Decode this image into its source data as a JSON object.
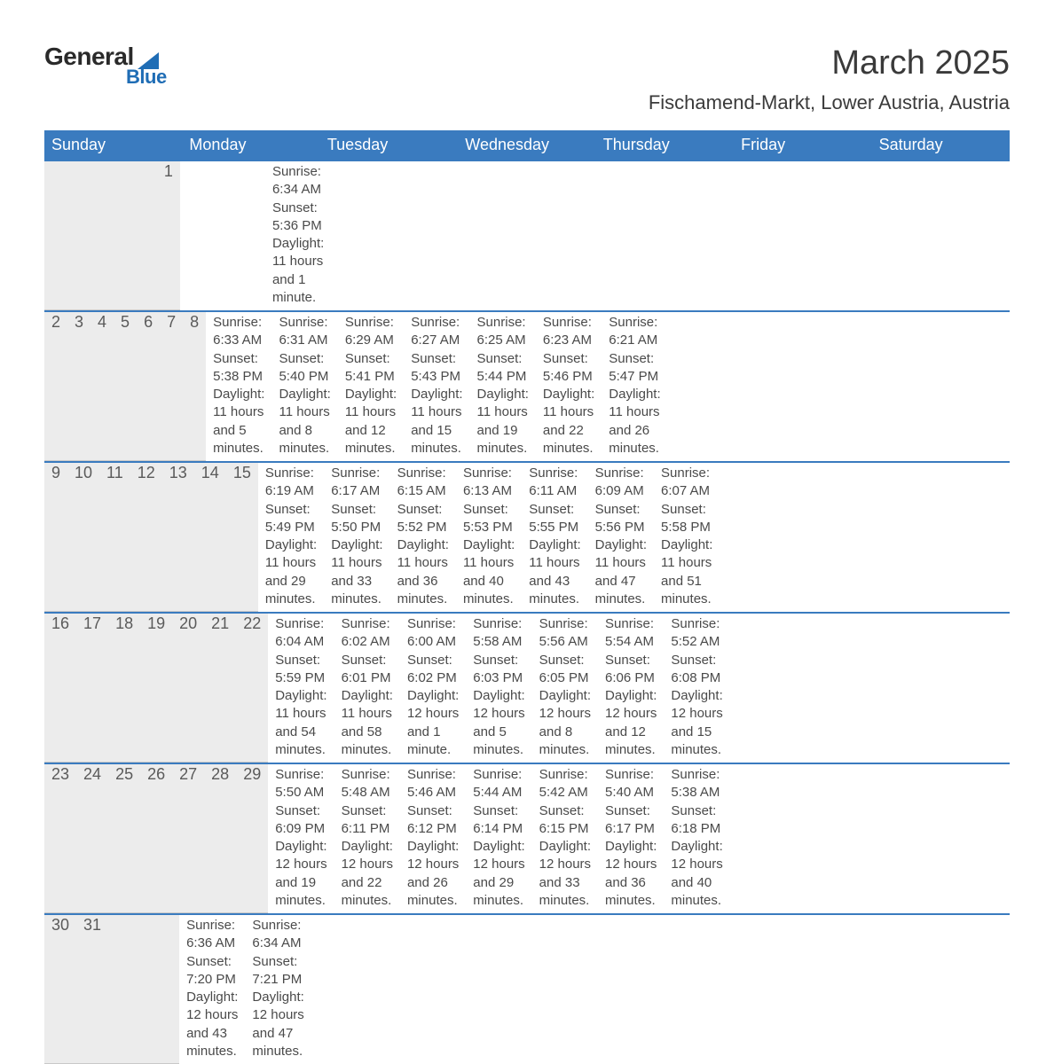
{
  "logo": {
    "text1": "General",
    "text2": "Blue"
  },
  "title": {
    "month": "March 2025",
    "location": "Fischamend-Markt, Lower Austria, Austria"
  },
  "colors": {
    "header_bg": "#3a7bbf",
    "header_text": "#ffffff",
    "daynum_bg": "#ececec",
    "row_divider": "#3a7bbf",
    "body_text": "#4a4a4a",
    "logo_accent": "#1f6db5",
    "page_bg": "#ffffff"
  },
  "fonts": {
    "family": "Arial",
    "title_size_pt": 29,
    "location_size_pt": 17,
    "header_size_pt": 14,
    "body_size_pt": 11
  },
  "weekdays": [
    "Sunday",
    "Monday",
    "Tuesday",
    "Wednesday",
    "Thursday",
    "Friday",
    "Saturday"
  ],
  "weeks": [
    {
      "days": [
        null,
        null,
        null,
        null,
        null,
        null,
        {
          "n": "1",
          "sunrise": "Sunrise: 6:34 AM",
          "sunset": "Sunset: 5:36 PM",
          "daylight1": "Daylight: 11 hours",
          "daylight2": "and 1 minute."
        }
      ]
    },
    {
      "days": [
        {
          "n": "2",
          "sunrise": "Sunrise: 6:33 AM",
          "sunset": "Sunset: 5:38 PM",
          "daylight1": "Daylight: 11 hours",
          "daylight2": "and 5 minutes."
        },
        {
          "n": "3",
          "sunrise": "Sunrise: 6:31 AM",
          "sunset": "Sunset: 5:40 PM",
          "daylight1": "Daylight: 11 hours",
          "daylight2": "and 8 minutes."
        },
        {
          "n": "4",
          "sunrise": "Sunrise: 6:29 AM",
          "sunset": "Sunset: 5:41 PM",
          "daylight1": "Daylight: 11 hours",
          "daylight2": "and 12 minutes."
        },
        {
          "n": "5",
          "sunrise": "Sunrise: 6:27 AM",
          "sunset": "Sunset: 5:43 PM",
          "daylight1": "Daylight: 11 hours",
          "daylight2": "and 15 minutes."
        },
        {
          "n": "6",
          "sunrise": "Sunrise: 6:25 AM",
          "sunset": "Sunset: 5:44 PM",
          "daylight1": "Daylight: 11 hours",
          "daylight2": "and 19 minutes."
        },
        {
          "n": "7",
          "sunrise": "Sunrise: 6:23 AM",
          "sunset": "Sunset: 5:46 PM",
          "daylight1": "Daylight: 11 hours",
          "daylight2": "and 22 minutes."
        },
        {
          "n": "8",
          "sunrise": "Sunrise: 6:21 AM",
          "sunset": "Sunset: 5:47 PM",
          "daylight1": "Daylight: 11 hours",
          "daylight2": "and 26 minutes."
        }
      ]
    },
    {
      "days": [
        {
          "n": "9",
          "sunrise": "Sunrise: 6:19 AM",
          "sunset": "Sunset: 5:49 PM",
          "daylight1": "Daylight: 11 hours",
          "daylight2": "and 29 minutes."
        },
        {
          "n": "10",
          "sunrise": "Sunrise: 6:17 AM",
          "sunset": "Sunset: 5:50 PM",
          "daylight1": "Daylight: 11 hours",
          "daylight2": "and 33 minutes."
        },
        {
          "n": "11",
          "sunrise": "Sunrise: 6:15 AM",
          "sunset": "Sunset: 5:52 PM",
          "daylight1": "Daylight: 11 hours",
          "daylight2": "and 36 minutes."
        },
        {
          "n": "12",
          "sunrise": "Sunrise: 6:13 AM",
          "sunset": "Sunset: 5:53 PM",
          "daylight1": "Daylight: 11 hours",
          "daylight2": "and 40 minutes."
        },
        {
          "n": "13",
          "sunrise": "Sunrise: 6:11 AM",
          "sunset": "Sunset: 5:55 PM",
          "daylight1": "Daylight: 11 hours",
          "daylight2": "and 43 minutes."
        },
        {
          "n": "14",
          "sunrise": "Sunrise: 6:09 AM",
          "sunset": "Sunset: 5:56 PM",
          "daylight1": "Daylight: 11 hours",
          "daylight2": "and 47 minutes."
        },
        {
          "n": "15",
          "sunrise": "Sunrise: 6:07 AM",
          "sunset": "Sunset: 5:58 PM",
          "daylight1": "Daylight: 11 hours",
          "daylight2": "and 51 minutes."
        }
      ]
    },
    {
      "days": [
        {
          "n": "16",
          "sunrise": "Sunrise: 6:04 AM",
          "sunset": "Sunset: 5:59 PM",
          "daylight1": "Daylight: 11 hours",
          "daylight2": "and 54 minutes."
        },
        {
          "n": "17",
          "sunrise": "Sunrise: 6:02 AM",
          "sunset": "Sunset: 6:01 PM",
          "daylight1": "Daylight: 11 hours",
          "daylight2": "and 58 minutes."
        },
        {
          "n": "18",
          "sunrise": "Sunrise: 6:00 AM",
          "sunset": "Sunset: 6:02 PM",
          "daylight1": "Daylight: 12 hours",
          "daylight2": "and 1 minute."
        },
        {
          "n": "19",
          "sunrise": "Sunrise: 5:58 AM",
          "sunset": "Sunset: 6:03 PM",
          "daylight1": "Daylight: 12 hours",
          "daylight2": "and 5 minutes."
        },
        {
          "n": "20",
          "sunrise": "Sunrise: 5:56 AM",
          "sunset": "Sunset: 6:05 PM",
          "daylight1": "Daylight: 12 hours",
          "daylight2": "and 8 minutes."
        },
        {
          "n": "21",
          "sunrise": "Sunrise: 5:54 AM",
          "sunset": "Sunset: 6:06 PM",
          "daylight1": "Daylight: 12 hours",
          "daylight2": "and 12 minutes."
        },
        {
          "n": "22",
          "sunrise": "Sunrise: 5:52 AM",
          "sunset": "Sunset: 6:08 PM",
          "daylight1": "Daylight: 12 hours",
          "daylight2": "and 15 minutes."
        }
      ]
    },
    {
      "days": [
        {
          "n": "23",
          "sunrise": "Sunrise: 5:50 AM",
          "sunset": "Sunset: 6:09 PM",
          "daylight1": "Daylight: 12 hours",
          "daylight2": "and 19 minutes."
        },
        {
          "n": "24",
          "sunrise": "Sunrise: 5:48 AM",
          "sunset": "Sunset: 6:11 PM",
          "daylight1": "Daylight: 12 hours",
          "daylight2": "and 22 minutes."
        },
        {
          "n": "25",
          "sunrise": "Sunrise: 5:46 AM",
          "sunset": "Sunset: 6:12 PM",
          "daylight1": "Daylight: 12 hours",
          "daylight2": "and 26 minutes."
        },
        {
          "n": "26",
          "sunrise": "Sunrise: 5:44 AM",
          "sunset": "Sunset: 6:14 PM",
          "daylight1": "Daylight: 12 hours",
          "daylight2": "and 29 minutes."
        },
        {
          "n": "27",
          "sunrise": "Sunrise: 5:42 AM",
          "sunset": "Sunset: 6:15 PM",
          "daylight1": "Daylight: 12 hours",
          "daylight2": "and 33 minutes."
        },
        {
          "n": "28",
          "sunrise": "Sunrise: 5:40 AM",
          "sunset": "Sunset: 6:17 PM",
          "daylight1": "Daylight: 12 hours",
          "daylight2": "and 36 minutes."
        },
        {
          "n": "29",
          "sunrise": "Sunrise: 5:38 AM",
          "sunset": "Sunset: 6:18 PM",
          "daylight1": "Daylight: 12 hours",
          "daylight2": "and 40 minutes."
        }
      ]
    },
    {
      "days": [
        {
          "n": "30",
          "sunrise": "Sunrise: 6:36 AM",
          "sunset": "Sunset: 7:20 PM",
          "daylight1": "Daylight: 12 hours",
          "daylight2": "and 43 minutes."
        },
        {
          "n": "31",
          "sunrise": "Sunrise: 6:34 AM",
          "sunset": "Sunset: 7:21 PM",
          "daylight1": "Daylight: 12 hours",
          "daylight2": "and 47 minutes."
        },
        null,
        null,
        null,
        null,
        null
      ]
    }
  ]
}
